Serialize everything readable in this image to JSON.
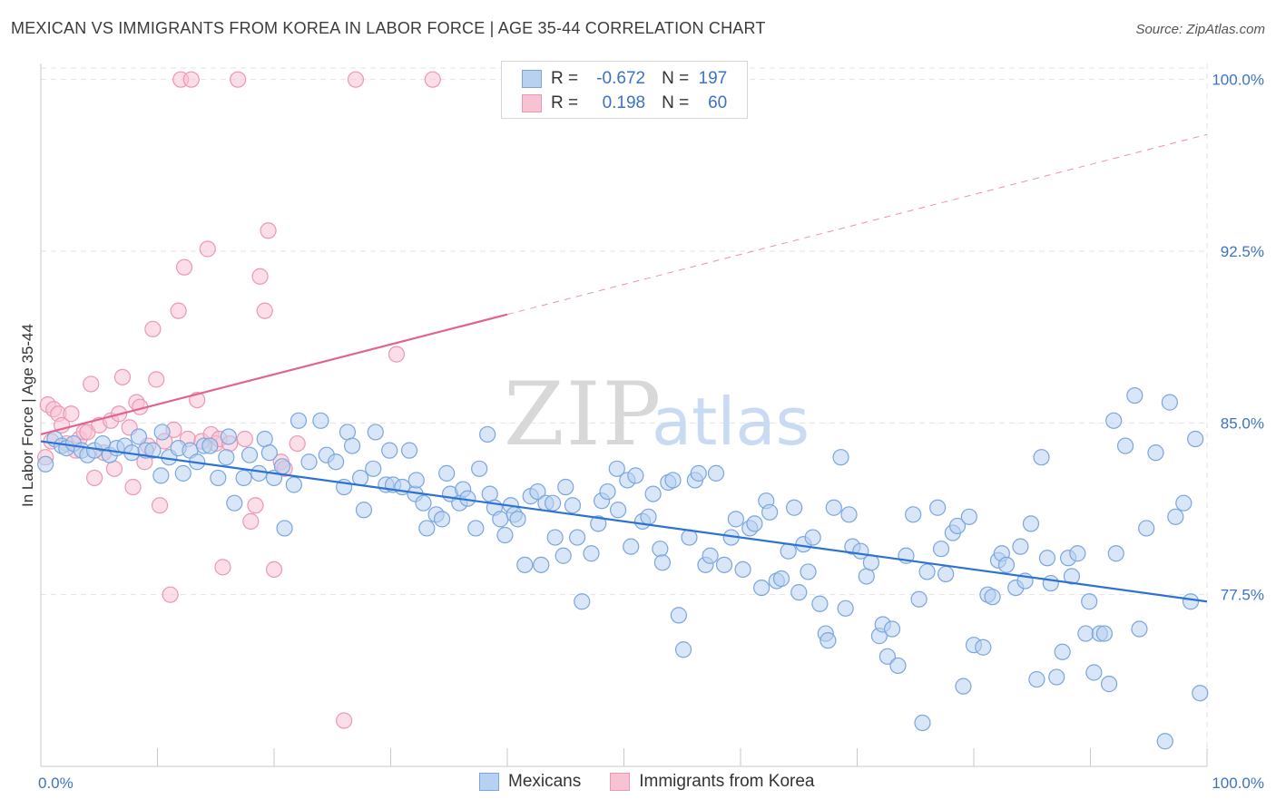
{
  "title": "MEXICAN VS IMMIGRANTS FROM KOREA IN LABOR FORCE | AGE 35-44 CORRELATION CHART",
  "source": "Source: ZipAtlas.com",
  "watermark": {
    "zip": "ZIP",
    "atlas": "atlas"
  },
  "legend_top": {
    "rows": [
      {
        "r_label": "R =",
        "r_value": "-0.672",
        "n_label": "N =",
        "n_value": "197"
      },
      {
        "r_label": "R =",
        "r_value": "0.198",
        "n_label": "N =",
        "n_value": "60"
      }
    ]
  },
  "legend_bottom": [
    {
      "label": "Mexicans"
    },
    {
      "label": "Immigrants from Korea"
    }
  ],
  "colors": {
    "blue_fill": "#b8d1f0",
    "blue_stroke": "#7aa6de",
    "blue_line": "#2c72d2",
    "pink_fill": "#f7c3d3",
    "pink_stroke": "#ec97b3",
    "pink_line": "#e0648e",
    "tick_text": "#3d73c5",
    "grid": "#e3e3e3"
  },
  "chart_data": {
    "type": "scatter",
    "title": "MEXICAN VS IMMIGRANTS FROM KOREA IN LABOR FORCE | AGE 35-44 CORRELATION CHART",
    "xlabel": "",
    "ylabel": "In Labor Force | Age 35-44",
    "xlim": [
      0,
      100
    ],
    "ylim": [
      70.0,
      100.7
    ],
    "x_tick_labels": [
      "0.0%",
      "100.0%"
    ],
    "y_ticks": [
      77.5,
      85.0,
      92.5,
      100.0
    ],
    "y_tick_labels": [
      "77.5%",
      "85.0%",
      "92.5%",
      "100.0%"
    ],
    "grid": true,
    "legend_position": "top-center",
    "series": [
      {
        "name": "Mexicans",
        "r": -0.672,
        "n": 197,
        "trend": {
          "x": [
            0,
            100
          ],
          "y": [
            84.2,
            77.2
          ],
          "dashed_from": null
        },
        "points": [
          [
            0.4,
            83.2
          ],
          [
            1.2,
            84.3
          ],
          [
            1.8,
            84.0
          ],
          [
            2.2,
            83.9
          ],
          [
            2.8,
            84.1
          ],
          [
            3.5,
            83.8
          ],
          [
            4.0,
            83.6
          ],
          [
            4.6,
            83.8
          ],
          [
            5.3,
            84.1
          ],
          [
            5.9,
            83.6
          ],
          [
            6.5,
            83.9
          ],
          [
            7.2,
            84.0
          ],
          [
            7.8,
            83.7
          ],
          [
            8.4,
            84.4
          ],
          [
            9.0,
            83.8
          ],
          [
            9.6,
            83.8
          ],
          [
            10.3,
            82.7
          ],
          [
            10.4,
            84.6
          ],
          [
            11.0,
            83.5
          ],
          [
            11.8,
            83.9
          ],
          [
            12.2,
            82.8
          ],
          [
            12.8,
            83.8
          ],
          [
            13.4,
            83.3
          ],
          [
            14.0,
            84.0
          ],
          [
            14.5,
            84.0
          ],
          [
            15.2,
            82.6
          ],
          [
            15.9,
            83.5
          ],
          [
            16.1,
            84.4
          ],
          [
            16.6,
            81.5
          ],
          [
            17.4,
            82.6
          ],
          [
            17.9,
            83.6
          ],
          [
            18.7,
            82.8
          ],
          [
            19.2,
            84.3
          ],
          [
            19.6,
            83.7
          ],
          [
            20.0,
            82.6
          ],
          [
            20.7,
            83.1
          ],
          [
            20.9,
            80.4
          ],
          [
            21.7,
            82.3
          ],
          [
            22.1,
            85.1
          ],
          [
            23.0,
            83.3
          ],
          [
            24.0,
            85.1
          ],
          [
            24.5,
            83.6
          ],
          [
            25.3,
            83.3
          ],
          [
            26.0,
            82.2
          ],
          [
            26.3,
            84.6
          ],
          [
            26.7,
            84.0
          ],
          [
            27.4,
            82.6
          ],
          [
            27.7,
            81.2
          ],
          [
            28.5,
            83.0
          ],
          [
            28.7,
            84.6
          ],
          [
            29.6,
            82.3
          ],
          [
            29.9,
            83.8
          ],
          [
            30.2,
            82.3
          ],
          [
            31.0,
            82.2
          ],
          [
            31.6,
            83.8
          ],
          [
            32.1,
            81.9
          ],
          [
            32.2,
            82.5
          ],
          [
            32.8,
            81.5
          ],
          [
            33.1,
            80.4
          ],
          [
            33.9,
            81.0
          ],
          [
            34.4,
            80.8
          ],
          [
            34.8,
            82.8
          ],
          [
            35.1,
            81.9
          ],
          [
            35.9,
            81.5
          ],
          [
            36.2,
            82.1
          ],
          [
            36.6,
            81.7
          ],
          [
            37.3,
            80.4
          ],
          [
            37.6,
            83.0
          ],
          [
            38.3,
            84.5
          ],
          [
            38.5,
            81.9
          ],
          [
            38.9,
            81.3
          ],
          [
            39.4,
            80.8
          ],
          [
            39.8,
            80.1
          ],
          [
            40.3,
            81.4
          ],
          [
            40.6,
            81.0
          ],
          [
            40.9,
            80.8
          ],
          [
            41.5,
            78.8
          ],
          [
            42.0,
            81.8
          ],
          [
            42.6,
            82.0
          ],
          [
            42.9,
            78.8
          ],
          [
            43.3,
            81.5
          ],
          [
            43.9,
            81.5
          ],
          [
            44.1,
            80.0
          ],
          [
            44.8,
            79.2
          ],
          [
            45.0,
            82.2
          ],
          [
            45.6,
            81.4
          ],
          [
            46.0,
            80.0
          ],
          [
            46.4,
            77.2
          ],
          [
            47.2,
            79.3
          ],
          [
            47.8,
            80.6
          ],
          [
            48.1,
            81.6
          ],
          [
            48.6,
            82.0
          ],
          [
            49.4,
            83.0
          ],
          [
            49.5,
            81.2
          ],
          [
            50.3,
            82.5
          ],
          [
            50.6,
            79.6
          ],
          [
            51.0,
            82.7
          ],
          [
            51.6,
            80.7
          ],
          [
            52.1,
            80.9
          ],
          [
            52.5,
            81.9
          ],
          [
            53.1,
            79.5
          ],
          [
            53.3,
            78.9
          ],
          [
            53.8,
            82.4
          ],
          [
            54.2,
            82.5
          ],
          [
            54.7,
            76.6
          ],
          [
            55.1,
            75.1
          ],
          [
            55.6,
            80.0
          ],
          [
            56.1,
            82.5
          ],
          [
            56.4,
            82.8
          ],
          [
            57.0,
            78.8
          ],
          [
            57.4,
            79.2
          ],
          [
            57.9,
            82.8
          ],
          [
            58.6,
            78.8
          ],
          [
            59.2,
            80.0
          ],
          [
            59.6,
            80.8
          ],
          [
            60.2,
            78.6
          ],
          [
            60.8,
            80.4
          ],
          [
            61.2,
            80.6
          ],
          [
            61.8,
            77.8
          ],
          [
            62.2,
            81.6
          ],
          [
            62.5,
            81.1
          ],
          [
            63.1,
            78.1
          ],
          [
            63.5,
            78.2
          ],
          [
            64.1,
            79.4
          ],
          [
            64.6,
            81.3
          ],
          [
            65.0,
            77.6
          ],
          [
            65.4,
            79.7
          ],
          [
            65.8,
            78.5
          ],
          [
            66.2,
            80.0
          ],
          [
            66.8,
            77.1
          ],
          [
            67.3,
            75.8
          ],
          [
            67.5,
            75.5
          ],
          [
            68.0,
            81.3
          ],
          [
            68.6,
            83.5
          ],
          [
            69.0,
            76.9
          ],
          [
            69.3,
            81.0
          ],
          [
            69.6,
            79.6
          ],
          [
            70.3,
            79.4
          ],
          [
            70.8,
            78.3
          ],
          [
            71.2,
            78.9
          ],
          [
            71.9,
            75.7
          ],
          [
            72.2,
            76.2
          ],
          [
            72.6,
            74.8
          ],
          [
            73.0,
            76.0
          ],
          [
            73.5,
            74.4
          ],
          [
            74.2,
            79.2
          ],
          [
            74.8,
            81.0
          ],
          [
            75.3,
            77.3
          ],
          [
            75.6,
            71.9
          ],
          [
            76.0,
            78.5
          ],
          [
            76.9,
            81.3
          ],
          [
            77.2,
            79.5
          ],
          [
            77.6,
            78.4
          ],
          [
            78.2,
            80.2
          ],
          [
            78.6,
            80.5
          ],
          [
            79.1,
            73.5
          ],
          [
            79.6,
            80.9
          ],
          [
            80.0,
            75.3
          ],
          [
            80.8,
            75.2
          ],
          [
            81.2,
            77.5
          ],
          [
            81.6,
            77.4
          ],
          [
            82.1,
            79.0
          ],
          [
            82.4,
            79.3
          ],
          [
            82.8,
            78.8
          ],
          [
            83.6,
            77.8
          ],
          [
            84.0,
            79.6
          ],
          [
            84.4,
            78.1
          ],
          [
            84.9,
            80.6
          ],
          [
            85.4,
            73.8
          ],
          [
            85.8,
            83.5
          ],
          [
            86.3,
            79.1
          ],
          [
            86.6,
            78.0
          ],
          [
            87.1,
            73.9
          ],
          [
            87.6,
            75.0
          ],
          [
            88.1,
            79.1
          ],
          [
            88.4,
            78.3
          ],
          [
            88.9,
            79.3
          ],
          [
            89.6,
            75.8
          ],
          [
            89.9,
            77.2
          ],
          [
            90.3,
            74.1
          ],
          [
            90.8,
            75.8
          ],
          [
            91.2,
            75.8
          ],
          [
            91.6,
            73.6
          ],
          [
            92.0,
            85.1
          ],
          [
            92.2,
            79.3
          ],
          [
            93.0,
            84.0
          ],
          [
            93.8,
            86.2
          ],
          [
            94.2,
            76.0
          ],
          [
            94.8,
            80.4
          ],
          [
            95.6,
            83.7
          ],
          [
            96.4,
            71.1
          ],
          [
            96.8,
            85.9
          ],
          [
            97.3,
            80.9
          ],
          [
            98.0,
            81.5
          ],
          [
            98.6,
            77.2
          ],
          [
            99.0,
            84.3
          ],
          [
            99.4,
            73.2
          ]
        ]
      },
      {
        "name": "Immigrants from Korea",
        "r": 0.198,
        "n": 60,
        "trend": {
          "x": [
            0,
            100
          ],
          "y": [
            84.5,
            97.6
          ],
          "solid_until": 40
        },
        "points": [
          [
            0.4,
            83.5
          ],
          [
            0.6,
            85.8
          ],
          [
            0.9,
            84.2
          ],
          [
            1.1,
            85.6
          ],
          [
            1.5,
            85.4
          ],
          [
            1.8,
            84.9
          ],
          [
            2.2,
            84.1
          ],
          [
            2.6,
            85.4
          ],
          [
            3.0,
            83.8
          ],
          [
            3.3,
            84.3
          ],
          [
            3.7,
            84.6
          ],
          [
            4.0,
            84.6
          ],
          [
            4.3,
            86.7
          ],
          [
            4.6,
            82.6
          ],
          [
            5.0,
            84.9
          ],
          [
            5.4,
            83.7
          ],
          [
            6.0,
            85.1
          ],
          [
            6.3,
            83.0
          ],
          [
            6.7,
            85.4
          ],
          [
            7.0,
            87.0
          ],
          [
            7.6,
            84.8
          ],
          [
            7.9,
            82.2
          ],
          [
            8.2,
            85.9
          ],
          [
            8.5,
            85.7
          ],
          [
            8.9,
            83.3
          ],
          [
            9.2,
            84.0
          ],
          [
            9.6,
            89.1
          ],
          [
            9.9,
            86.9
          ],
          [
            10.2,
            81.4
          ],
          [
            10.6,
            84.2
          ],
          [
            11.1,
            77.5
          ],
          [
            11.4,
            84.7
          ],
          [
            11.8,
            89.9
          ],
          [
            12.0,
            100.0
          ],
          [
            12.3,
            91.8
          ],
          [
            12.6,
            84.3
          ],
          [
            12.9,
            100.0
          ],
          [
            13.4,
            86.0
          ],
          [
            13.8,
            84.2
          ],
          [
            14.3,
            92.6
          ],
          [
            14.6,
            84.5
          ],
          [
            15.0,
            84.1
          ],
          [
            15.3,
            84.3
          ],
          [
            15.6,
            78.7
          ],
          [
            16.2,
            84.1
          ],
          [
            16.9,
            100.0
          ],
          [
            17.5,
            84.3
          ],
          [
            18.0,
            80.7
          ],
          [
            18.4,
            81.4
          ],
          [
            18.8,
            91.4
          ],
          [
            19.2,
            89.9
          ],
          [
            19.5,
            93.4
          ],
          [
            20.0,
            78.6
          ],
          [
            20.6,
            83.3
          ],
          [
            20.9,
            83.0
          ],
          [
            22.0,
            84.1
          ],
          [
            26.0,
            72.0
          ],
          [
            27.0,
            100.0
          ],
          [
            30.5,
            88.0
          ],
          [
            33.6,
            100.0
          ]
        ]
      }
    ]
  }
}
